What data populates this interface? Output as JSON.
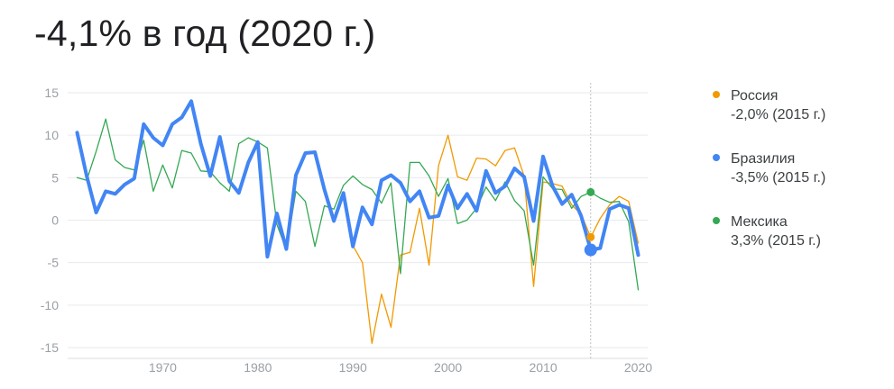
{
  "headline": "-4,1% в год (2020 г.)",
  "chart_data": {
    "type": "line",
    "xlim": [
      1960,
      2021
    ],
    "ylim": [
      -15,
      15
    ],
    "yticks": [
      15,
      10,
      5,
      0,
      -5,
      -10,
      -15
    ],
    "xticks": [
      1970,
      1980,
      1990,
      2000,
      2010,
      2020
    ],
    "grid": true,
    "marker_year": 2015,
    "legend_position": "right",
    "series": [
      {
        "name": "Россия",
        "value_text": "-2,0% (2015 г.)",
        "color": "#f29900",
        "x": [
          1990,
          1991,
          1992,
          1993,
          1994,
          1995,
          1996,
          1997,
          1998,
          1999,
          2000,
          2001,
          2002,
          2003,
          2004,
          2005,
          2006,
          2007,
          2008,
          2009,
          2010,
          2011,
          2012,
          2013,
          2014,
          2015,
          2016,
          2017,
          2018,
          2019,
          2020
        ],
        "values": [
          -3.0,
          -5.0,
          -14.5,
          -8.7,
          -12.6,
          -4.1,
          -3.8,
          1.4,
          -5.3,
          6.4,
          10.0,
          5.1,
          4.7,
          7.3,
          7.2,
          6.4,
          8.2,
          8.5,
          5.2,
          -7.8,
          4.5,
          4.3,
          4.0,
          1.8,
          0.7,
          -2.0,
          0.2,
          1.8,
          2.8,
          2.2,
          -2.7
        ]
      },
      {
        "name": "Бразилия",
        "value_text": "-3,5% (2015 г.)",
        "color": "#4285f4",
        "x": [
          1961,
          1962,
          1963,
          1964,
          1965,
          1966,
          1967,
          1968,
          1969,
          1970,
          1971,
          1972,
          1973,
          1974,
          1975,
          1976,
          1977,
          1978,
          1979,
          1980,
          1981,
          1982,
          1983,
          1984,
          1985,
          1986,
          1987,
          1988,
          1989,
          1990,
          1991,
          1992,
          1993,
          1994,
          1995,
          1996,
          1997,
          1998,
          1999,
          2000,
          2001,
          2002,
          2003,
          2004,
          2005,
          2006,
          2007,
          2008,
          2009,
          2010,
          2011,
          2012,
          2013,
          2014,
          2015,
          2016,
          2017,
          2018,
          2019,
          2020
        ],
        "values": [
          10.3,
          5.2,
          0.9,
          3.4,
          3.1,
          4.2,
          4.9,
          11.3,
          9.7,
          8.8,
          11.3,
          12.1,
          14.0,
          9.0,
          5.2,
          9.8,
          4.6,
          3.2,
          6.8,
          9.2,
          -4.3,
          0.8,
          -3.4,
          5.3,
          7.9,
          8.0,
          3.6,
          -0.1,
          3.2,
          -3.1,
          1.5,
          -0.5,
          4.7,
          5.3,
          4.4,
          2.2,
          3.4,
          0.3,
          0.5,
          4.1,
          1.4,
          3.1,
          1.1,
          5.8,
          3.2,
          4.0,
          6.1,
          5.1,
          -0.1,
          7.5,
          4.0,
          1.9,
          3.0,
          0.5,
          -3.5,
          -3.3,
          1.3,
          1.8,
          1.4,
          -4.1
        ]
      },
      {
        "name": "Мексика",
        "value_text": "3,3% (2015 г.)",
        "color": "#34a853",
        "x": [
          1961,
          1962,
          1963,
          1964,
          1965,
          1966,
          1967,
          1968,
          1969,
          1970,
          1971,
          1972,
          1973,
          1974,
          1975,
          1976,
          1977,
          1978,
          1979,
          1980,
          1981,
          1982,
          1983,
          1984,
          1985,
          1986,
          1987,
          1988,
          1989,
          1990,
          1991,
          1992,
          1993,
          1994,
          1995,
          1996,
          1997,
          1998,
          1999,
          2000,
          2001,
          2002,
          2003,
          2004,
          2005,
          2006,
          2007,
          2008,
          2009,
          2010,
          2011,
          2012,
          2013,
          2014,
          2015,
          2016,
          2017,
          2018,
          2019,
          2020
        ],
        "values": [
          5.0,
          4.7,
          8.1,
          11.9,
          7.1,
          6.2,
          5.9,
          9.4,
          3.4,
          6.5,
          3.8,
          8.2,
          7.9,
          5.8,
          5.7,
          4.4,
          3.4,
          9.0,
          9.7,
          9.2,
          8.5,
          -0.5,
          -3.5,
          3.4,
          2.2,
          -3.1,
          1.7,
          1.3,
          4.1,
          5.2,
          4.2,
          3.6,
          2.0,
          4.4,
          -6.3,
          6.8,
          6.8,
          5.2,
          2.8,
          4.9,
          -0.4,
          0.0,
          1.4,
          3.9,
          2.3,
          4.5,
          2.3,
          1.1,
          -5.3,
          5.1,
          3.7,
          3.6,
          1.4,
          2.8,
          3.3,
          2.6,
          2.1,
          2.2,
          -0.2,
          -8.2
        ]
      }
    ]
  }
}
